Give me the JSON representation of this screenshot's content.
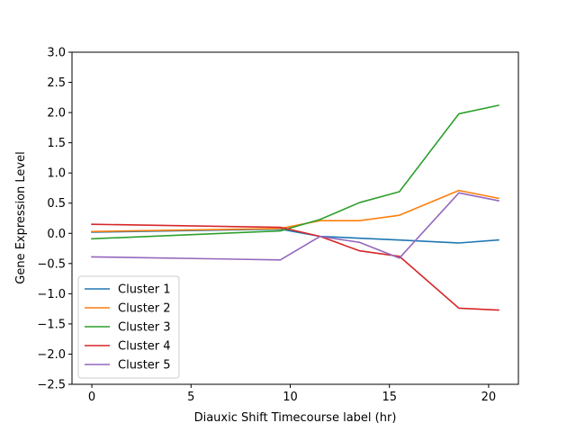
{
  "chart_data": {
    "type": "line",
    "title": "",
    "xlabel": "Diauxic Shift Timecourse label (hr)",
    "ylabel": "Gene Expression Level",
    "xlim": [
      -1.0,
      21.5
    ],
    "ylim": [
      -2.5,
      3.0
    ],
    "xticks": [
      0,
      5,
      10,
      15,
      20
    ],
    "yticks": [
      -2.5,
      -2.0,
      -1.5,
      -1.0,
      -0.5,
      0.0,
      0.5,
      1.0,
      1.5,
      2.0,
      2.5,
      3.0
    ],
    "xtick_labels": [
      "0",
      "5",
      "10",
      "15",
      "20"
    ],
    "ytick_labels": [
      "−2.5",
      "−2.0",
      "−1.5",
      "−1.0",
      "−0.5",
      "0.0",
      "0.5",
      "1.0",
      "1.5",
      "2.0",
      "2.5",
      "3.0"
    ],
    "grid": false,
    "legend_position": "lower-left",
    "x": [
      0,
      9.5,
      11.5,
      13.5,
      15.5,
      18.5,
      20.5
    ],
    "series": [
      {
        "name": "Cluster 1",
        "color": "#1f77b4",
        "values": [
          0.02,
          0.07,
          -0.05,
          -0.08,
          -0.11,
          -0.16,
          -0.11
        ]
      },
      {
        "name": "Cluster 2",
        "color": "#ff7f0e",
        "values": [
          0.03,
          0.08,
          0.21,
          0.21,
          0.3,
          0.71,
          0.58
        ]
      },
      {
        "name": "Cluster 3",
        "color": "#2ca02c",
        "values": [
          -0.09,
          0.04,
          0.23,
          0.51,
          0.69,
          1.98,
          2.12
        ]
      },
      {
        "name": "Cluster 4",
        "color": "#d62728",
        "values": [
          0.15,
          0.1,
          -0.05,
          -0.29,
          -0.38,
          -1.24,
          -1.27
        ]
      },
      {
        "name": "Cluster 5",
        "color": "#9467bd",
        "values": [
          -0.39,
          -0.44,
          -0.05,
          -0.15,
          -0.41,
          0.67,
          0.54
        ]
      }
    ]
  }
}
